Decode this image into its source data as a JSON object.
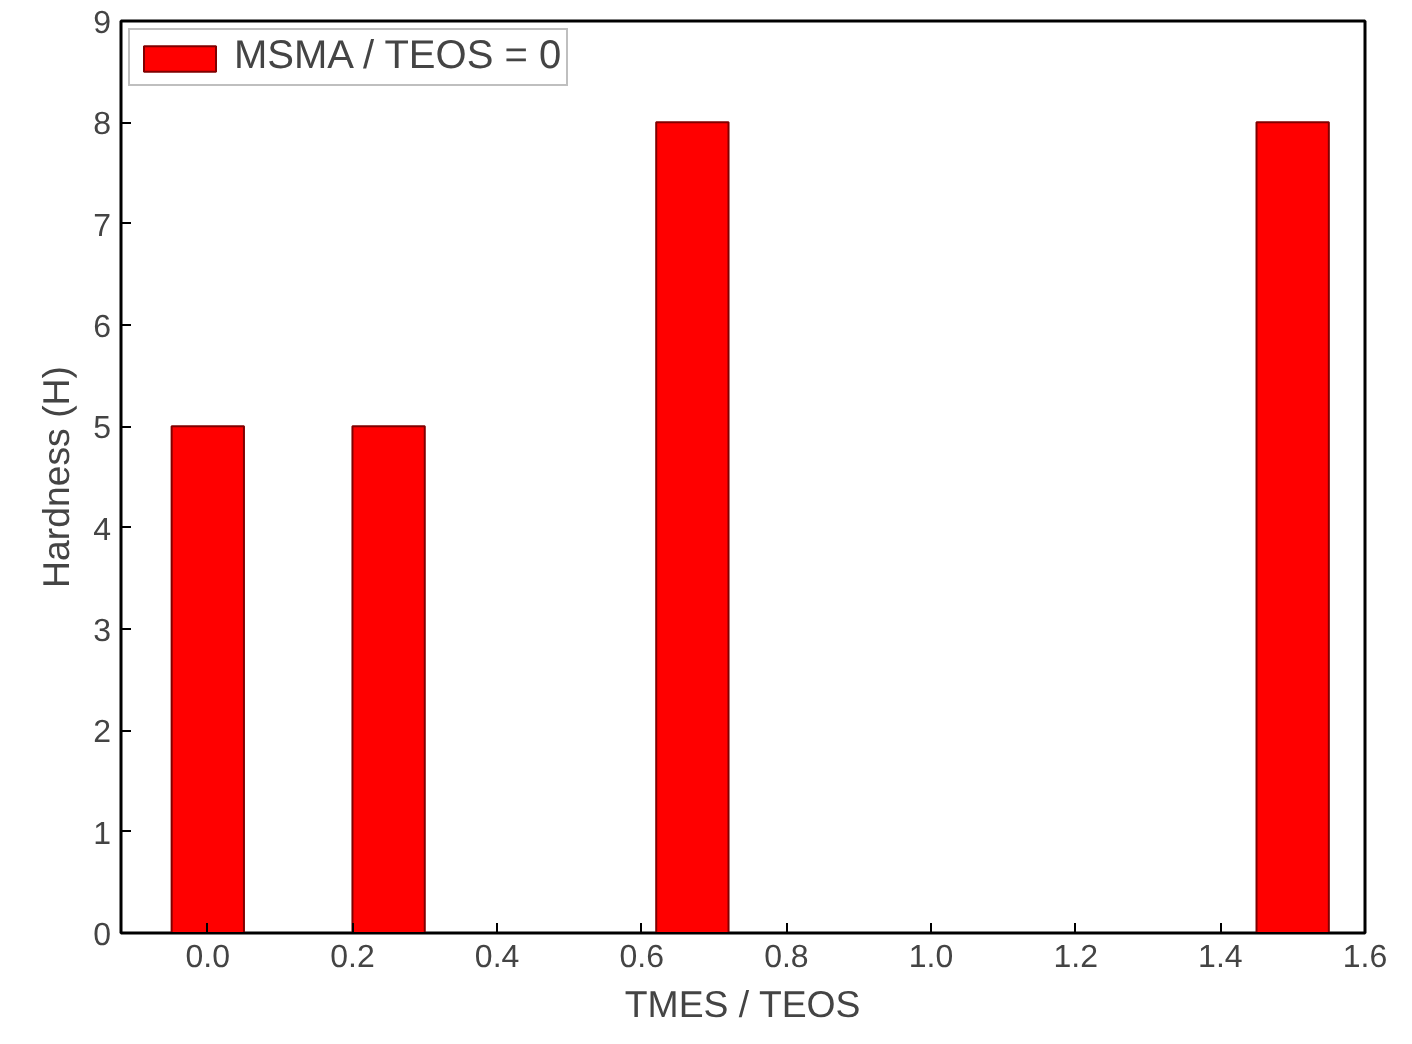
{
  "chart_data": {
    "type": "bar",
    "xlabel": "TMES / TEOS",
    "ylabel": "Hardness (H)",
    "x": [
      0.0,
      0.25,
      0.67,
      1.5
    ],
    "series": [
      {
        "name": "MSMA / TEOS = 0",
        "color": "#ff0000",
        "values": [
          5,
          5,
          8,
          8
        ]
      }
    ],
    "xlim": [
      -0.12,
      1.6
    ],
    "xticks": [
      {
        "value": 0,
        "label": "0.0"
      },
      0.2,
      0.4,
      0.6,
      0.8,
      {
        "value": 1,
        "label": "1.0"
      },
      1.2,
      1.4,
      1.6
    ],
    "ylim": [
      0,
      9
    ],
    "yticks": [
      0,
      1,
      2,
      3,
      4,
      5,
      6,
      7,
      8,
      9
    ],
    "grid": false,
    "legend": "top left"
  }
}
